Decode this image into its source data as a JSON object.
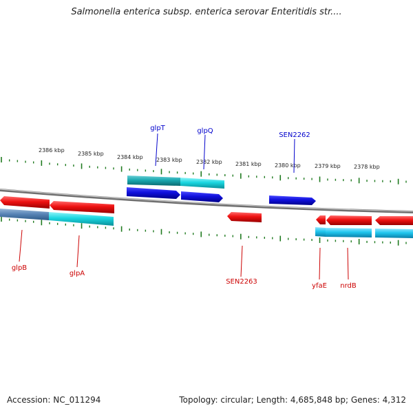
{
  "title": "Salmonella enterica subsp. enterica serovar Enteritidis str....",
  "footer": {
    "accession": "Accession: NC_011294",
    "summary": "Topology: circular; Length: 4,685,848 bp; Genes: 4,312"
  },
  "colors": {
    "forward_gene": "#1010dd",
    "forward_cds": "#1ad6e0",
    "reverse_gene": "#ee1111",
    "reverse_cds": "#20c6ee",
    "tick": "#1f7a1f",
    "backbone": "#8a8a8a",
    "forward_label": "#0000cc",
    "reverse_label": "#cc0000"
  },
  "scale_labels": [
    {
      "text": "2386 kbp"
    },
    {
      "text": "2385 kbp"
    },
    {
      "text": "2384 kbp"
    },
    {
      "text": "2383 kbp"
    },
    {
      "text": "2382 kbp"
    },
    {
      "text": "2381 kbp"
    },
    {
      "text": "2380 kbp"
    },
    {
      "text": "2379 kbp"
    },
    {
      "text": "2378 kbp"
    }
  ],
  "forward_labels": [
    {
      "text": "glpT"
    },
    {
      "text": "glpQ"
    },
    {
      "text": "SEN2262"
    }
  ],
  "reverse_labels": [
    {
      "text": "glpB"
    },
    {
      "text": "glpA"
    },
    {
      "text": "SEN2263"
    },
    {
      "text": "yfaE"
    },
    {
      "text": "nrdB"
    }
  ]
}
